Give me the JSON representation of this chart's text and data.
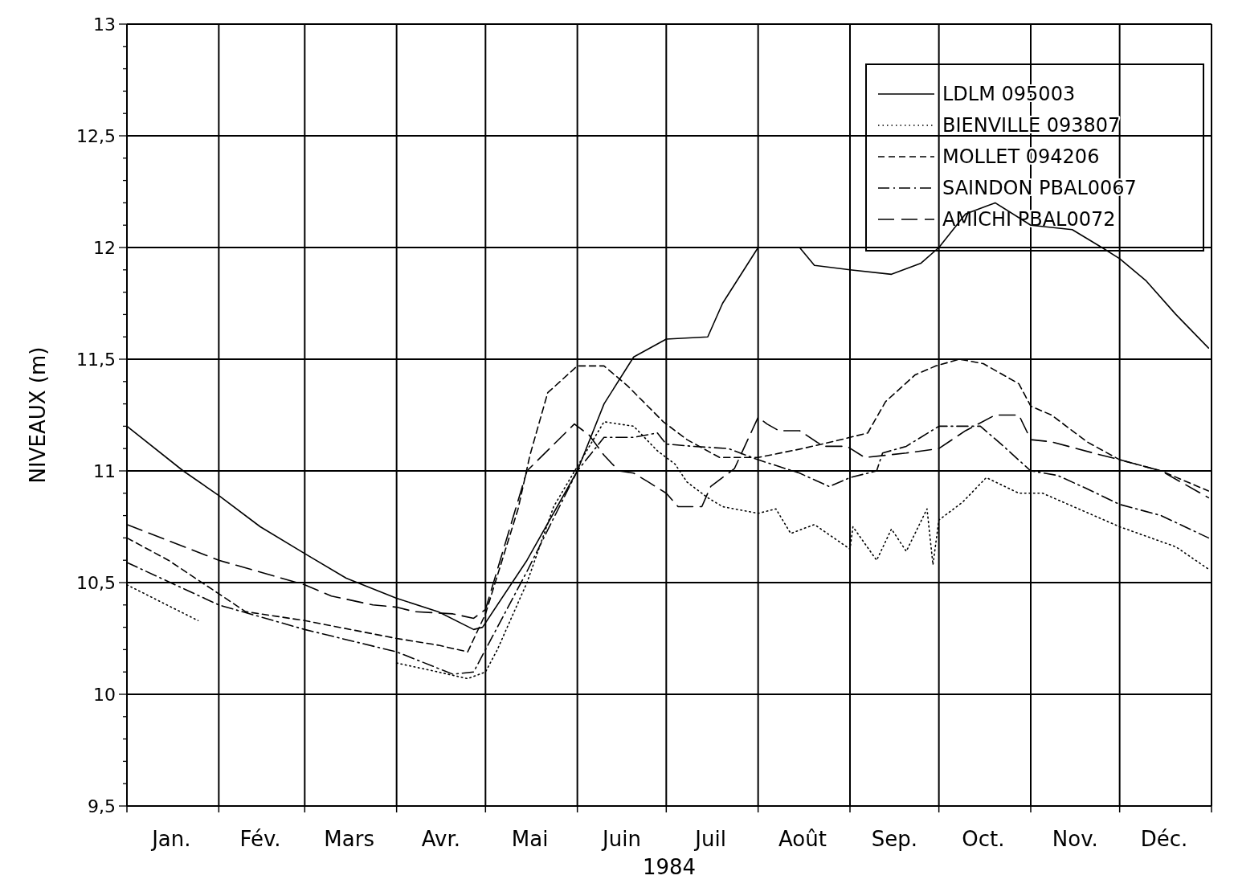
{
  "chart_data": {
    "type": "line",
    "xlabel": "1984",
    "ylabel": "NIVEAUX (m)",
    "xlim": [
      "1984-01-01",
      "1985-01-01"
    ],
    "xticks": [
      {
        "value": "1984-01-01",
        "label": null
      },
      {
        "value": "1984-02-01",
        "label": null
      },
      {
        "value": "1984-03-01",
        "label": null
      },
      {
        "value": "1984-04-01",
        "label": null
      },
      {
        "value": "1984-05-01",
        "label": null
      },
      {
        "value": "1984-06-01",
        "label": null
      },
      {
        "value": "1984-07-01",
        "label": null
      },
      {
        "value": "1984-08-01",
        "label": null
      },
      {
        "value": "1984-09-01",
        "label": null
      },
      {
        "value": "1984-10-01",
        "label": null
      },
      {
        "value": "1984-11-01",
        "label": null
      },
      {
        "value": "1984-12-01",
        "label": null
      },
      {
        "value": "1985-01-01",
        "label": null
      },
      {
        "value": "1984-01-16",
        "label": "Jan."
      },
      {
        "value": "1984-02-15",
        "label": "Fév."
      },
      {
        "value": "1984-03-16",
        "label": "Mars"
      },
      {
        "value": "1984-04-16",
        "label": "Avr."
      },
      {
        "value": "1984-05-16",
        "label": "Mai"
      },
      {
        "value": "1984-06-16",
        "label": "Juin"
      },
      {
        "value": "1984-07-16",
        "label": "Juil"
      },
      {
        "value": "1984-08-16",
        "label": "Août"
      },
      {
        "value": "1984-09-16",
        "label": "Sep."
      },
      {
        "value": "1984-10-16",
        "label": "Oct."
      },
      {
        "value": "1984-11-16",
        "label": "Nov."
      },
      {
        "value": "1984-12-16",
        "label": "Déc."
      }
    ],
    "ylim": [
      9.5,
      13
    ],
    "yticks": [
      {
        "value": 9.5,
        "label": "9,5"
      },
      {
        "value": 9.6,
        "label": null
      },
      {
        "value": 9.7,
        "label": null
      },
      {
        "value": 9.8,
        "label": null
      },
      {
        "value": 9.9,
        "label": null
      },
      10,
      {
        "value": 10.1,
        "label": null
      },
      {
        "value": 10.2,
        "label": null
      },
      {
        "value": 10.3,
        "label": null
      },
      {
        "value": 10.4,
        "label": null
      },
      {
        "value": 10.5,
        "label": "10,5"
      },
      {
        "value": 10.6,
        "label": null
      },
      {
        "value": 10.7,
        "label": null
      },
      {
        "value": 10.8,
        "label": null
      },
      {
        "value": 10.9,
        "label": null
      },
      11,
      {
        "value": 11.1,
        "label": null
      },
      {
        "value": 11.2,
        "label": null
      },
      {
        "value": 11.3,
        "label": null
      },
      {
        "value": 11.4,
        "label": null
      },
      {
        "value": 11.5,
        "label": "11,5"
      },
      {
        "value": 11.6,
        "label": null
      },
      {
        "value": 11.7,
        "label": null
      },
      {
        "value": 11.8,
        "label": null
      },
      {
        "value": 11.9,
        "label": null
      },
      12,
      {
        "value": 12.1,
        "label": null
      },
      {
        "value": 12.2,
        "label": null
      },
      {
        "value": 12.3,
        "label": null
      },
      {
        "value": 12.4,
        "label": null
      },
      {
        "value": 12.5,
        "label": "12,5"
      },
      {
        "value": 12.6,
        "label": null
      },
      {
        "value": 12.7,
        "label": null
      },
      {
        "value": 12.8,
        "label": null
      },
      {
        "value": 12.9,
        "label": null
      },
      13
    ],
    "grid": true,
    "legend": "top right",
    "marker": "none",
    "series": [
      {
        "name": "LDLM 095003",
        "color": "#000000",
        "line_style": "solid",
        "x": [
          "1984-01-01",
          "1984-01-20",
          "1984-02-01",
          "1984-02-15",
          "1984-03-01",
          "1984-03-15",
          "1984-04-01",
          "1984-04-15",
          "1984-04-27",
          "1984-04-30",
          "1984-05-15",
          "1984-06-01",
          "1984-06-10",
          "1984-06-20",
          "1984-07-01",
          "1984-07-15",
          "1984-07-20",
          "1984-08-01",
          "1984-08-15",
          "1984-08-20",
          "1984-09-01",
          "1984-09-15",
          "1984-09-25",
          "1984-10-01",
          "1984-10-10",
          "1984-10-20",
          "1984-11-01",
          "1984-11-15",
          "1984-11-25",
          "1984-12-01",
          "1984-12-10",
          "1984-12-20",
          "1984-12-31"
        ],
        "values": [
          11.2,
          11.0,
          10.89,
          10.75,
          10.63,
          10.52,
          10.43,
          10.37,
          10.29,
          10.3,
          10.6,
          11.0,
          11.3,
          11.51,
          11.59,
          11.6,
          11.75,
          12.0,
          12.0,
          11.92,
          11.9,
          11.88,
          11.93,
          12.0,
          12.15,
          12.2,
          12.1,
          12.08,
          12.0,
          11.95,
          11.85,
          11.7,
          11.55
        ]
      },
      {
        "name": "BIENVILLE 093807",
        "color": "#000000",
        "line_style": "dotted",
        "x": [
          "1984-01-01",
          "1984-01-10",
          "1984-01-25",
          "1984-02-15",
          "1984-04-01",
          "1984-04-15",
          "1984-04-25",
          "1984-05-01",
          "1984-05-05",
          "1984-05-15",
          "1984-05-24",
          "1984-06-01",
          "1984-06-10",
          "1984-06-20",
          "1984-06-28",
          "1984-07-04",
          "1984-07-08",
          "1984-07-15",
          "1984-07-20",
          "1984-08-01",
          "1984-08-07",
          "1984-08-12",
          "1984-08-20",
          "1984-09-01",
          "1984-09-02",
          "1984-09-10",
          "1984-09-15",
          "1984-09-20",
          "1984-09-27",
          "1984-09-29",
          "1984-10-01",
          "1984-10-09",
          "1984-10-17",
          "1984-10-28",
          "1984-11-05",
          "1984-12-01",
          "1984-12-20",
          "1984-12-31"
        ],
        "values": [
          10.49,
          10.43,
          10.33,
          null,
          10.14,
          10.1,
          10.07,
          10.1,
          10.2,
          10.5,
          10.84,
          11.02,
          11.22,
          11.2,
          11.09,
          11.03,
          10.95,
          10.88,
          10.84,
          10.81,
          10.83,
          10.72,
          10.76,
          10.65,
          10.75,
          10.6,
          10.74,
          10.64,
          10.83,
          10.58,
          10.78,
          10.86,
          10.97,
          10.9,
          10.9,
          10.75,
          10.66,
          10.56
        ]
      },
      {
        "name": "MOLLET 094206",
        "color": "#000000",
        "line_style": "dashed",
        "x": [
          "1984-01-01",
          "1984-01-15",
          "1984-02-01",
          "1984-02-10",
          "1984-03-01",
          "1984-04-01",
          "1984-04-15",
          "1984-04-25",
          "1984-05-01",
          "1984-05-12",
          "1984-05-16",
          "1984-05-22",
          "1984-06-01",
          "1984-06-10",
          "1984-06-18",
          "1984-06-30",
          "1984-07-08",
          "1984-07-19",
          "1984-08-01",
          "1984-08-16",
          "1984-08-29",
          "1984-09-07",
          "1984-09-13",
          "1984-09-23",
          "1984-09-30",
          "1984-10-08",
          "1984-10-16",
          "1984-10-28",
          "1984-11-01",
          "1984-11-08",
          "1984-11-20",
          "1984-12-01",
          "1984-12-15",
          "1984-12-31"
        ],
        "values": [
          10.7,
          10.6,
          10.45,
          10.37,
          10.33,
          10.25,
          10.22,
          10.19,
          10.36,
          10.83,
          11.07,
          11.35,
          11.47,
          11.47,
          11.38,
          11.22,
          11.14,
          11.06,
          11.06,
          11.1,
          11.14,
          11.17,
          11.31,
          11.43,
          11.47,
          11.5,
          11.48,
          11.39,
          11.29,
          11.25,
          11.13,
          11.05,
          11.0,
          10.91
        ]
      },
      {
        "name": "SAINDON PBAL0067",
        "color": "#000000",
        "line_style": "dashdot",
        "x": [
          "1984-01-01",
          "1984-02-01",
          "1984-03-01",
          "1984-04-01",
          "1984-04-20",
          "1984-04-27",
          "1984-05-01",
          "1984-05-15",
          "1984-06-01",
          "1984-06-10",
          "1984-06-20",
          "1984-06-28",
          "1984-07-01",
          "1984-07-10",
          "1984-07-22",
          "1984-08-01",
          "1984-08-15",
          "1984-08-25",
          "1984-09-01",
          "1984-09-10",
          "1984-09-12",
          "1984-09-20",
          "1984-10-01",
          "1984-10-15",
          "1984-10-22",
          "1984-11-01",
          "1984-11-10",
          "1984-11-20",
          "1984-12-01",
          "1984-12-15",
          "1984-12-31"
        ],
        "values": [
          10.59,
          10.4,
          10.29,
          10.19,
          10.09,
          10.1,
          10.2,
          10.55,
          11.0,
          11.15,
          11.15,
          11.17,
          11.12,
          11.11,
          11.1,
          11.05,
          10.99,
          10.93,
          10.97,
          11.0,
          11.08,
          11.11,
          11.2,
          11.2,
          11.12,
          11.0,
          10.98,
          10.92,
          10.85,
          10.8,
          10.7
        ]
      },
      {
        "name": "AMICHI PBAL0072",
        "color": "#000000",
        "line_style": "longdash",
        "x": [
          "1984-01-01",
          "1984-02-01",
          "1984-03-01",
          "1984-03-10",
          "1984-03-24",
          "1984-04-01",
          "1984-04-07",
          "1984-04-20",
          "1984-04-27",
          "1984-05-01",
          "1984-05-15",
          "1984-05-31",
          "1984-06-05",
          "1984-06-10",
          "1984-06-15",
          "1984-06-20",
          "1984-06-25",
          "1984-07-01",
          "1984-07-05",
          "1984-07-13",
          "1984-07-16",
          "1984-07-24",
          "1984-08-01",
          "1984-08-04",
          "1984-08-08",
          "1984-08-15",
          "1984-08-23",
          "1984-08-31",
          "1984-09-06",
          "1984-09-20",
          "1984-10-01",
          "1984-10-10",
          "1984-10-20",
          "1984-10-28",
          "1984-11-01",
          "1984-11-08",
          "1984-11-25",
          "1984-12-01",
          "1984-12-15",
          "1984-12-31"
        ],
        "values": [
          10.76,
          10.6,
          10.49,
          10.44,
          10.4,
          10.39,
          10.37,
          10.36,
          10.34,
          10.38,
          11.0,
          11.21,
          11.16,
          11.07,
          11.0,
          10.99,
          10.95,
          10.9,
          10.84,
          10.84,
          10.93,
          11.01,
          11.24,
          11.21,
          11.18,
          11.18,
          11.11,
          11.11,
          11.06,
          11.08,
          11.1,
          11.18,
          11.25,
          11.25,
          11.14,
          11.13,
          11.07,
          11.05,
          11.0,
          10.88
        ]
      }
    ]
  }
}
